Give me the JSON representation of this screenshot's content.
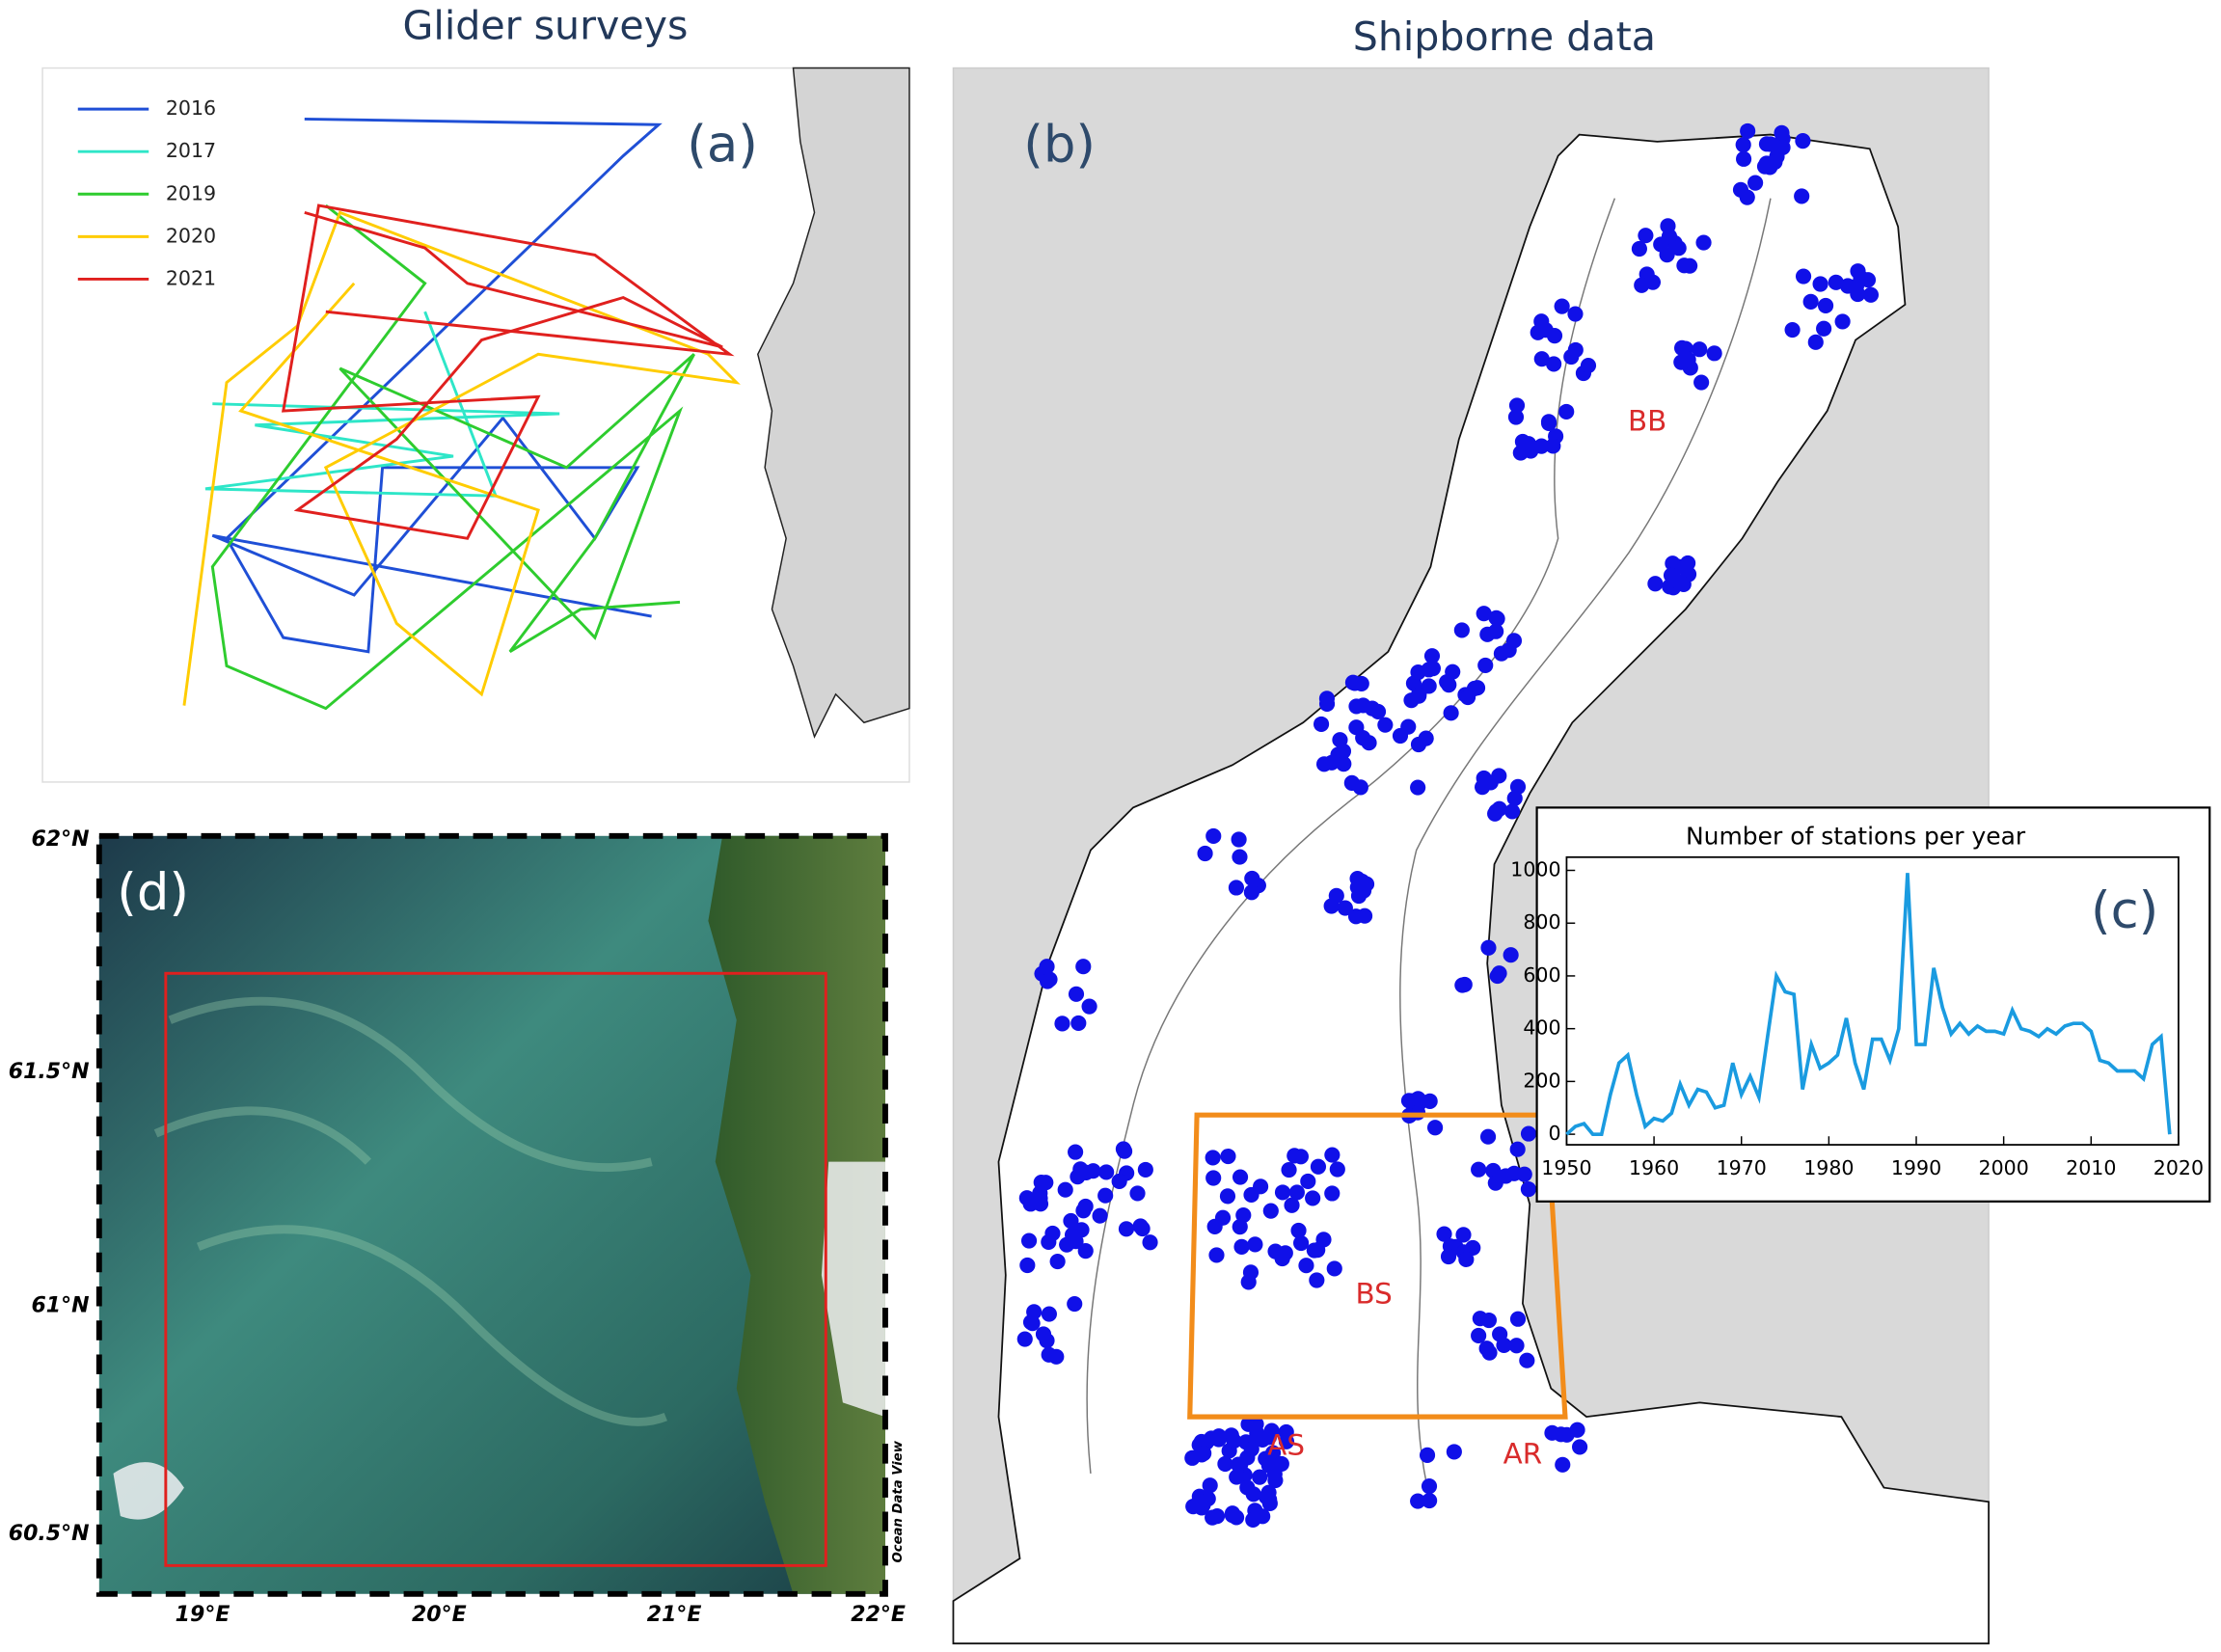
{
  "headers": {
    "left": "Glider surveys",
    "right": "Shipborne data"
  },
  "panel_a": {
    "label": "(a)",
    "legend": [
      {
        "name": "2016",
        "color": "#1f4fd6"
      },
      {
        "name": "2017",
        "color": "#2ee6c8"
      },
      {
        "name": "2019",
        "color": "#2ecc2e"
      },
      {
        "name": "2020",
        "color": "#ffcc00"
      },
      {
        "name": "2021",
        "color": "#e0201e"
      }
    ]
  },
  "panel_b": {
    "label": "(b)",
    "regions": [
      "BB",
      "BS",
      "AS",
      "AR"
    ]
  },
  "panel_d": {
    "label": "(d)",
    "lat_labels": [
      "62°N",
      "61.5°N",
      "61°N",
      "60.5°N"
    ],
    "lon_labels": [
      "19°E",
      "20°E",
      "21°E",
      "22°E"
    ],
    "credit": "Ocean Data View"
  },
  "chart_data": {
    "type": "line",
    "title": "Number of stations per year",
    "label": "(c)",
    "x": [
      1950,
      1951,
      1952,
      1953,
      1954,
      1955,
      1956,
      1957,
      1958,
      1959,
      1960,
      1961,
      1962,
      1963,
      1964,
      1965,
      1966,
      1967,
      1968,
      1969,
      1970,
      1971,
      1972,
      1973,
      1974,
      1975,
      1976,
      1977,
      1978,
      1979,
      1980,
      1981,
      1982,
      1983,
      1984,
      1985,
      1986,
      1987,
      1988,
      1989,
      1990,
      1991,
      1992,
      1993,
      1994,
      1995,
      1996,
      1997,
      1998,
      1999,
      2000,
      2001,
      2002,
      2003,
      2004,
      2005,
      2006,
      2007,
      2008,
      2009,
      2010,
      2011,
      2012,
      2013,
      2014,
      2015,
      2016,
      2017,
      2018,
      2019
    ],
    "series": [
      {
        "name": "stations",
        "color": "#1a9be0",
        "values": [
          0,
          30,
          40,
          0,
          0,
          150,
          270,
          300,
          150,
          30,
          60,
          50,
          80,
          190,
          110,
          170,
          160,
          100,
          110,
          270,
          150,
          220,
          140,
          370,
          600,
          540,
          530,
          170,
          340,
          250,
          270,
          300,
          440,
          270,
          170,
          360,
          360,
          280,
          400,
          990,
          340,
          340,
          630,
          480,
          380,
          420,
          380,
          410,
          390,
          390,
          380,
          470,
          400,
          390,
          370,
          400,
          380,
          410,
          420,
          420,
          390,
          280,
          270,
          240,
          240,
          240,
          210,
          340,
          370,
          0
        ]
      }
    ],
    "xlim": [
      1950,
      2020
    ],
    "ylim": [
      -40,
      1050
    ],
    "xticks": [
      1950,
      1960,
      1970,
      1980,
      1990,
      2000,
      2010,
      2020
    ],
    "yticks": [
      0,
      200,
      400,
      600,
      800,
      1000
    ]
  }
}
